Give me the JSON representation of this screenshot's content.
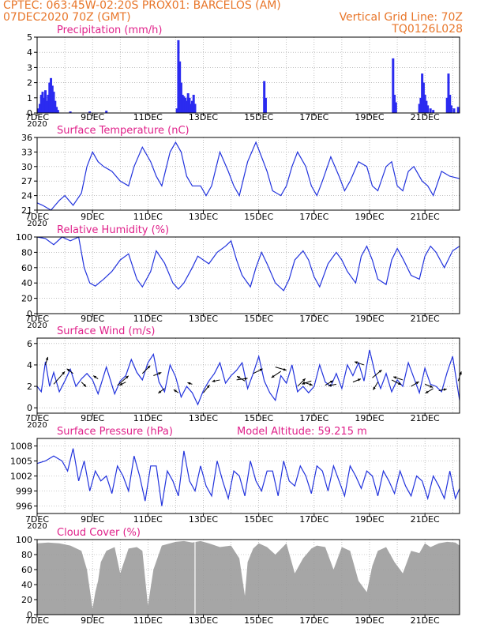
{
  "header": {
    "line1": "CPTEC:   063:45W-02:20S   PROX01: BARCELOS (AM)",
    "line2_left": "07DEC2020 70Z (GMT)",
    "line2_right": "Vertical Grid Line: 70Z",
    "line3_right": "TQ0126L028"
  },
  "colors": {
    "header": "#e8762a",
    "title": "#e0218a",
    "series": "#2233dd",
    "bar": "#2b2bf0",
    "cloud": "#a6a6a6",
    "grid": "#999999"
  },
  "x_tick_labels": [
    "7DEC",
    "9DEC",
    "11DEC",
    "13DEC",
    "15DEC",
    "17DEC",
    "19DEC",
    "21DEC"
  ],
  "panel_start_label": "2020",
  "chart_data": [
    {
      "id": "precip",
      "type": "bar",
      "title": "Precipitation (mm/h)",
      "ylim": [
        0,
        5
      ],
      "yticks": [
        0,
        1,
        2,
        3,
        4,
        5
      ],
      "x_range_days": [
        7,
        22.25
      ],
      "x": [
        7.05,
        7.1,
        7.15,
        7.2,
        7.25,
        7.3,
        7.35,
        7.4,
        7.45,
        7.5,
        7.55,
        7.6,
        7.65,
        7.7,
        7.75,
        8.2,
        8.9,
        9.5,
        12.05,
        12.1,
        12.15,
        12.2,
        12.25,
        12.3,
        12.35,
        12.4,
        12.45,
        12.5,
        12.55,
        12.6,
        12.65,
        12.7,
        15.2,
        15.25,
        19.85,
        19.9,
        19.95,
        20.8,
        20.85,
        20.9,
        20.95,
        21.0,
        21.05,
        21.1,
        21.2,
        21.3,
        21.8,
        21.85,
        21.9,
        21.95,
        22.05,
        22.2
      ],
      "values": [
        0.3,
        0.6,
        1.2,
        1.4,
        1.0,
        1.5,
        0.8,
        1.2,
        2.0,
        2.3,
        1.8,
        1.4,
        0.8,
        0.4,
        0.2,
        0.1,
        0.1,
        0.15,
        0.3,
        4.8,
        3.4,
        2.0,
        1.2,
        1.1,
        1.0,
        0.8,
        1.3,
        1.0,
        0.6,
        0.8,
        1.2,
        0.6,
        2.1,
        1.0,
        3.6,
        1.2,
        0.7,
        0.6,
        1.0,
        2.6,
        2.0,
        1.2,
        0.8,
        0.5,
        0.3,
        0.2,
        1.0,
        2.6,
        1.2,
        0.5,
        0.3,
        0.4
      ]
    },
    {
      "id": "temp",
      "type": "line",
      "title": "Surface Temperature (nC)",
      "ylim": [
        21,
        36
      ],
      "yticks": [
        21,
        24,
        27,
        30,
        33,
        36
      ],
      "x_range_days": [
        7,
        22.25
      ],
      "x": [
        7.0,
        7.2,
        7.5,
        7.8,
        8.0,
        8.3,
        8.6,
        8.8,
        9.0,
        9.2,
        9.4,
        9.7,
        10.0,
        10.3,
        10.5,
        10.8,
        11.1,
        11.3,
        11.5,
        11.8,
        12.0,
        12.2,
        12.4,
        12.6,
        12.9,
        13.1,
        13.3,
        13.6,
        13.9,
        14.1,
        14.3,
        14.6,
        14.9,
        15.1,
        15.3,
        15.5,
        15.8,
        16.0,
        16.2,
        16.4,
        16.7,
        16.9,
        17.1,
        17.3,
        17.6,
        17.9,
        18.1,
        18.3,
        18.6,
        18.9,
        19.1,
        19.3,
        19.6,
        19.8,
        20.0,
        20.2,
        20.4,
        20.6,
        20.9,
        21.1,
        21.3,
        21.6,
        21.9,
        22.25
      ],
      "values": [
        22.5,
        22,
        21,
        23,
        24,
        22,
        24.5,
        30,
        33,
        31,
        30,
        29,
        27,
        26,
        30,
        34,
        31,
        28,
        26,
        33,
        35,
        33,
        28,
        26,
        26,
        24,
        26,
        33,
        29,
        26,
        24,
        31,
        35,
        32,
        29,
        25,
        24,
        26,
        30,
        33,
        30,
        26,
        24,
        27,
        32,
        28,
        25,
        27,
        31,
        30,
        26,
        25,
        30,
        31,
        26,
        25,
        29,
        30,
        27,
        26,
        24,
        29,
        28,
        27.5
      ]
    },
    {
      "id": "rh",
      "type": "line",
      "title": "Relative Humidity (%)",
      "ylim": [
        0,
        100
      ],
      "yticks": [
        0,
        20,
        40,
        60,
        80,
        100
      ],
      "x_range_days": [
        7,
        22.25
      ],
      "x": [
        7.0,
        7.3,
        7.6,
        7.9,
        8.2,
        8.5,
        8.7,
        8.9,
        9.1,
        9.4,
        9.7,
        10.0,
        10.3,
        10.6,
        10.8,
        11.1,
        11.3,
        11.6,
        11.9,
        12.1,
        12.3,
        12.6,
        12.8,
        13.0,
        13.2,
        13.5,
        13.8,
        14.0,
        14.2,
        14.4,
        14.7,
        14.9,
        15.1,
        15.3,
        15.6,
        15.9,
        16.1,
        16.3,
        16.6,
        16.8,
        17.0,
        17.2,
        17.5,
        17.8,
        18.0,
        18.2,
        18.5,
        18.7,
        18.9,
        19.1,
        19.3,
        19.6,
        19.8,
        20.0,
        20.2,
        20.5,
        20.8,
        21.0,
        21.2,
        21.4,
        21.7,
        22.0,
        22.25
      ],
      "values": [
        100,
        98,
        90,
        100,
        95,
        100,
        60,
        40,
        36,
        45,
        55,
        70,
        78,
        45,
        35,
        55,
        82,
        66,
        40,
        32,
        40,
        60,
        75,
        70,
        65,
        80,
        88,
        95,
        70,
        50,
        35,
        60,
        80,
        65,
        40,
        30,
        45,
        70,
        82,
        70,
        48,
        35,
        65,
        80,
        70,
        55,
        40,
        75,
        88,
        70,
        45,
        38,
        70,
        85,
        72,
        50,
        45,
        75,
        88,
        80,
        60,
        82,
        88
      ]
    },
    {
      "id": "wind",
      "type": "line",
      "title": "Surface Wind (m/s)",
      "ylim": [
        -0.5,
        6.5
      ],
      "yticks": [
        0,
        2,
        4,
        6
      ],
      "x_range_days": [
        7,
        22.25
      ],
      "x": [
        7.0,
        7.15,
        7.3,
        7.45,
        7.6,
        7.8,
        8.0,
        8.2,
        8.4,
        8.6,
        8.8,
        9.0,
        9.2,
        9.5,
        9.8,
        10.0,
        10.2,
        10.4,
        10.6,
        10.8,
        11.0,
        11.2,
        11.4,
        11.6,
        11.8,
        12.0,
        12.2,
        12.4,
        12.6,
        12.8,
        13.0,
        13.2,
        13.4,
        13.6,
        13.8,
        14.0,
        14.2,
        14.4,
        14.6,
        14.8,
        15.0,
        15.2,
        15.4,
        15.6,
        15.8,
        16.0,
        16.2,
        16.4,
        16.6,
        16.8,
        17.0,
        17.2,
        17.4,
        17.6,
        17.8,
        18.0,
        18.2,
        18.4,
        18.6,
        18.8,
        19.0,
        19.2,
        19.4,
        19.6,
        19.8,
        20.0,
        20.2,
        20.4,
        20.6,
        20.8,
        21.0,
        21.2,
        21.4,
        21.6,
        21.8,
        22.0,
        22.25
      ],
      "values": [
        2.0,
        1.5,
        4.3,
        2.0,
        3.3,
        1.5,
        2.5,
        3.6,
        2.0,
        2.7,
        3.2,
        2.6,
        1.3,
        3.8,
        1.3,
        2.5,
        3.0,
        4.5,
        3.3,
        2.6,
        4.2,
        5.0,
        2.4,
        1.5,
        4.0,
        2.9,
        1.0,
        2.0,
        1.4,
        0.3,
        1.6,
        2.5,
        3.2,
        4.2,
        2.3,
        3.0,
        3.5,
        4.2,
        1.8,
        3.2,
        4.8,
        2.5,
        1.4,
        0.7,
        3.0,
        2.3,
        4.0,
        1.5,
        2.0,
        1.4,
        2.0,
        4.0,
        2.4,
        2.0,
        3.2,
        1.8,
        4.0,
        3.0,
        4.2,
        2.5,
        5.4,
        3.2,
        1.8,
        3.2,
        1.5,
        2.6,
        2.0,
        4.2,
        2.8,
        1.4,
        3.7,
        2.2,
        2.0,
        1.5,
        3.3,
        4.8,
        0.7
      ]
    },
    {
      "id": "pressure",
      "type": "line",
      "title": "Surface Pressure (hPa)",
      "subtitle": "Model Altitude: 59.215 m",
      "ylim": [
        994.5,
        1009.5
      ],
      "yticks": [
        996,
        999,
        1002,
        1005,
        1008
      ],
      "x_range_days": [
        7,
        22.25
      ],
      "x": [
        7.0,
        7.3,
        7.6,
        7.9,
        8.1,
        8.3,
        8.5,
        8.7,
        8.9,
        9.1,
        9.3,
        9.5,
        9.7,
        9.9,
        10.1,
        10.3,
        10.5,
        10.7,
        10.9,
        11.1,
        11.3,
        11.5,
        11.7,
        11.9,
        12.1,
        12.3,
        12.5,
        12.7,
        12.9,
        13.1,
        13.3,
        13.5,
        13.7,
        13.9,
        14.1,
        14.3,
        14.5,
        14.7,
        14.9,
        15.1,
        15.3,
        15.5,
        15.7,
        15.9,
        16.1,
        16.3,
        16.5,
        16.7,
        16.9,
        17.1,
        17.3,
        17.5,
        17.7,
        17.9,
        18.1,
        18.3,
        18.5,
        18.7,
        18.9,
        19.1,
        19.3,
        19.5,
        19.7,
        19.9,
        20.1,
        20.3,
        20.5,
        20.7,
        20.9,
        21.1,
        21.3,
        21.5,
        21.7,
        21.9,
        22.1,
        22.25
      ],
      "values": [
        1004.5,
        1005,
        1006,
        1005,
        1003,
        1007.5,
        1001,
        1005,
        999,
        1003,
        1001,
        1002,
        998.5,
        1004,
        1002,
        999,
        1006,
        1002,
        997,
        1004,
        1004,
        996,
        1003,
        1001,
        998,
        1007,
        1001,
        999,
        1004,
        1000,
        998,
        1005,
        1001,
        997.5,
        1003,
        1002,
        998,
        1005,
        1001,
        999,
        1003,
        1003,
        998,
        1005,
        1001,
        1000,
        1004,
        1002,
        998.5,
        1004,
        1003,
        999,
        1004,
        1001,
        998,
        1004,
        1002,
        999.5,
        1003,
        1002,
        998,
        1003,
        1001,
        998.5,
        1003,
        1000,
        998,
        1002,
        1001,
        997.5,
        1002,
        1000,
        997.5,
        1003,
        997.5,
        999.5
      ]
    },
    {
      "id": "cloud",
      "type": "area",
      "title": "Cloud Cover (%)",
      "ylim": [
        0,
        100
      ],
      "yticks": [
        0,
        20,
        40,
        60,
        80,
        100
      ],
      "x_range_days": [
        7,
        22.25
      ],
      "x": [
        7.0,
        7.4,
        7.8,
        8.2,
        8.6,
        8.8,
        9.0,
        9.1,
        9.2,
        9.3,
        9.5,
        9.8,
        10.0,
        10.3,
        10.6,
        10.8,
        11.0,
        11.2,
        11.5,
        11.8,
        12.0,
        12.3,
        12.6,
        12.9,
        13.2,
        13.6,
        14.0,
        14.3,
        14.5,
        14.6,
        14.8,
        15.0,
        15.3,
        15.6,
        16.0,
        16.3,
        16.6,
        16.9,
        17.1,
        17.4,
        17.7,
        18.0,
        18.3,
        18.6,
        18.9,
        19.1,
        19.3,
        19.6,
        19.9,
        20.2,
        20.5,
        20.8,
        21.0,
        21.2,
        21.5,
        21.8,
        22.1,
        22.25
      ],
      "values": [
        95,
        96,
        95,
        92,
        85,
        60,
        8,
        30,
        45,
        70,
        85,
        90,
        55,
        88,
        90,
        85,
        12,
        60,
        92,
        95,
        97,
        98,
        96,
        98,
        95,
        90,
        92,
        75,
        25,
        70,
        88,
        95,
        90,
        80,
        95,
        55,
        75,
        88,
        92,
        90,
        60,
        90,
        85,
        45,
        30,
        65,
        85,
        90,
        70,
        55,
        85,
        82,
        95,
        90,
        95,
        97,
        96,
        92
      ]
    }
  ],
  "wind_vectors": [
    {
      "day": 7.3,
      "speed": 4.0,
      "dx": 3,
      "dy": -10
    },
    {
      "day": 7.6,
      "speed": 2.2,
      "dx": 14,
      "dy": -16
    },
    {
      "day": 8.3,
      "speed": 3.2,
      "dx": -8,
      "dy": -6
    },
    {
      "day": 8.6,
      "speed": 2.4,
      "dx": 6,
      "dy": 6
    },
    {
      "day": 9.2,
      "speed": 2.7,
      "dx": -6,
      "dy": -4
    },
    {
      "day": 9.9,
      "speed": 2.1,
      "dx": 14,
      "dy": -12
    },
    {
      "day": 10.2,
      "speed": 2.4,
      "dx": -8,
      "dy": 4
    },
    {
      "day": 10.8,
      "speed": 3.2,
      "dx": 10,
      "dy": -10
    },
    {
      "day": 11.2,
      "speed": 3.0,
      "dx": 10,
      "dy": -4
    },
    {
      "day": 11.6,
      "speed": 1.8,
      "dx": -8,
      "dy": 6
    },
    {
      "day": 12.1,
      "speed": 1.4,
      "dx": -6,
      "dy": -4
    },
    {
      "day": 12.6,
      "speed": 2.2,
      "dx": -6,
      "dy": -2
    },
    {
      "day": 13.0,
      "speed": 1.4,
      "dx": 8,
      "dy": -10
    },
    {
      "day": 13.6,
      "speed": 2.6,
      "dx": -10,
      "dy": 2
    },
    {
      "day": 14.2,
      "speed": 2.6,
      "dx": 14,
      "dy": -2
    },
    {
      "day": 14.5,
      "speed": 2.5,
      "dx": -10,
      "dy": -6
    },
    {
      "day": 14.8,
      "speed": 3.2,
      "dx": 12,
      "dy": -6
    },
    {
      "day": 15.6,
      "speed": 3.8,
      "dx": 14,
      "dy": 4
    },
    {
      "day": 15.8,
      "speed": 3.4,
      "dx": -12,
      "dy": 8
    },
    {
      "day": 16.4,
      "speed": 2.0,
      "dx": 10,
      "dy": -10
    },
    {
      "day": 16.6,
      "speed": 2.4,
      "dx": 12,
      "dy": 4
    },
    {
      "day": 16.9,
      "speed": 2.5,
      "dx": -12,
      "dy": 4
    },
    {
      "day": 17.4,
      "speed": 2.1,
      "dx": 10,
      "dy": -6
    },
    {
      "day": 17.8,
      "speed": 2.2,
      "dx": -10,
      "dy": 2
    },
    {
      "day": 18.4,
      "speed": 2.4,
      "dx": 10,
      "dy": -4
    },
    {
      "day": 18.8,
      "speed": 4.0,
      "dx": -12,
      "dy": -4
    },
    {
      "day": 19.1,
      "speed": 2.8,
      "dx": 12,
      "dy": -10
    },
    {
      "day": 19.3,
      "speed": 2.4,
      "dx": -6,
      "dy": 10
    },
    {
      "day": 19.8,
      "speed": 2.6,
      "dx": 12,
      "dy": 6
    },
    {
      "day": 20.2,
      "speed": 2.6,
      "dx": -12,
      "dy": -4
    },
    {
      "day": 20.5,
      "speed": 2.0,
      "dx": 10,
      "dy": -6
    },
    {
      "day": 21.0,
      "speed": 2.2,
      "dx": 10,
      "dy": 4
    },
    {
      "day": 21.3,
      "speed": 1.8,
      "dx": -10,
      "dy": 6
    },
    {
      "day": 21.5,
      "speed": 1.6,
      "dx": 10,
      "dy": -2
    },
    {
      "day": 22.2,
      "speed": 2.5,
      "dx": 4,
      "dy": -12
    }
  ]
}
